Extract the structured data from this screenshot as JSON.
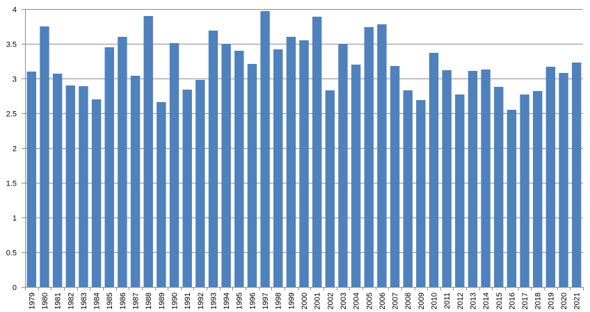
{
  "chart_data": {
    "type": "bar",
    "title": "",
    "xlabel": "",
    "ylabel": "",
    "ylim": [
      0,
      4
    ],
    "yticks": [
      "0",
      "0.5",
      "1",
      "1.5",
      "2",
      "2.5",
      "3",
      "3.5",
      "4"
    ],
    "grid": "horizontal",
    "bar_color": "#4F81BD",
    "categories": [
      "1979",
      "1980",
      "1981",
      "1982",
      "1983",
      "1984",
      "1985",
      "1986",
      "1987",
      "1988",
      "1989",
      "1990",
      "1991",
      "1992",
      "1993",
      "1994",
      "1995",
      "1996",
      "1997",
      "1998",
      "1999",
      "2000",
      "2001",
      "2002",
      "2003",
      "2004",
      "2005",
      "2006",
      "2007",
      "2008",
      "2009",
      "2010",
      "2011",
      "2012",
      "2013",
      "2014",
      "2015",
      "2016",
      "2017",
      "2018",
      "2019",
      "2020",
      "2021"
    ],
    "values": [
      3.1,
      3.75,
      3.07,
      2.9,
      2.89,
      2.7,
      3.45,
      3.6,
      3.04,
      3.9,
      2.66,
      3.51,
      2.84,
      2.98,
      3.69,
      3.5,
      3.4,
      3.21,
      3.97,
      3.42,
      3.6,
      3.55,
      3.89,
      2.83,
      3.5,
      3.2,
      3.74,
      3.78,
      3.18,
      2.83,
      2.69,
      3.37,
      3.12,
      2.77,
      3.11,
      3.13,
      2.88,
      2.55,
      2.77,
      2.82,
      3.17,
      3.08,
      3.23
    ]
  }
}
